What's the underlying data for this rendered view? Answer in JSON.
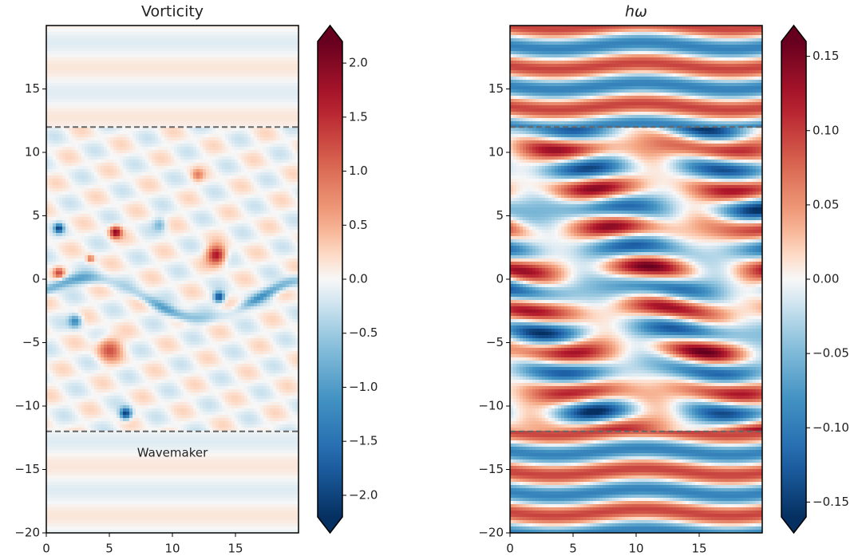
{
  "chart_data": [
    {
      "type": "heatmap",
      "title": "Vorticity",
      "xlim": [
        0,
        20
      ],
      "ylim": [
        -20,
        20
      ],
      "xticks": [
        0,
        5,
        10,
        15
      ],
      "yticks": [
        {
          "value": -20,
          "label": "−20"
        },
        {
          "value": -15,
          "label": "−15"
        },
        {
          "value": -10,
          "label": "−10"
        },
        {
          "value": -5,
          "label": "−5"
        },
        0,
        5,
        10,
        15
      ],
      "colormap": "RdBu_r",
      "colorbar": {
        "clim": [
          -2.2,
          2.2
        ],
        "extend": "both",
        "ticks": [
          {
            "value": -2,
            "label": "−2.0"
          },
          {
            "value": -1.5,
            "label": "−1.5"
          },
          {
            "value": -1,
            "label": "−1.0"
          },
          {
            "value": -0.5,
            "label": "−0.5"
          },
          {
            "value": 0,
            "label": "0.0"
          },
          {
            "value": 0.5,
            "label": "0.5"
          },
          {
            "value": 1,
            "label": "1.0"
          },
          {
            "value": 1.5,
            "label": "1.5"
          },
          {
            "value": 2,
            "label": "2.0"
          }
        ]
      },
      "hlines": [
        12,
        -12
      ],
      "hline_color": "#666666",
      "annotations": [
        "Wavemaker"
      ]
    },
    {
      "type": "heatmap",
      "title": "hω",
      "xlim": [
        0,
        20
      ],
      "ylim": [
        -20,
        20
      ],
      "xticks": [
        0,
        5,
        10,
        15
      ],
      "yticks": [
        {
          "value": -20,
          "label": "−20"
        },
        {
          "value": -15,
          "label": "−15"
        },
        {
          "value": -10,
          "label": "−10"
        },
        {
          "value": -5,
          "label": "−5"
        },
        0,
        5,
        10,
        15
      ],
      "colormap": "RdBu_r",
      "colorbar": {
        "clim": [
          -0.16,
          0.16
        ],
        "extend": "both",
        "ticks": [
          {
            "value": -0.15,
            "label": "−0.15"
          },
          {
            "value": -0.1,
            "label": "−0.10"
          },
          {
            "value": -0.05,
            "label": "−0.05"
          },
          {
            "value": 0,
            "label": "0.00"
          },
          {
            "value": 0.05,
            "label": "0.05"
          },
          {
            "value": 0.1,
            "label": "0.10"
          },
          {
            "value": 0.15,
            "label": "0.15"
          }
        ]
      },
      "hlines": [
        12,
        -12
      ],
      "hline_color": "#666666"
    }
  ]
}
